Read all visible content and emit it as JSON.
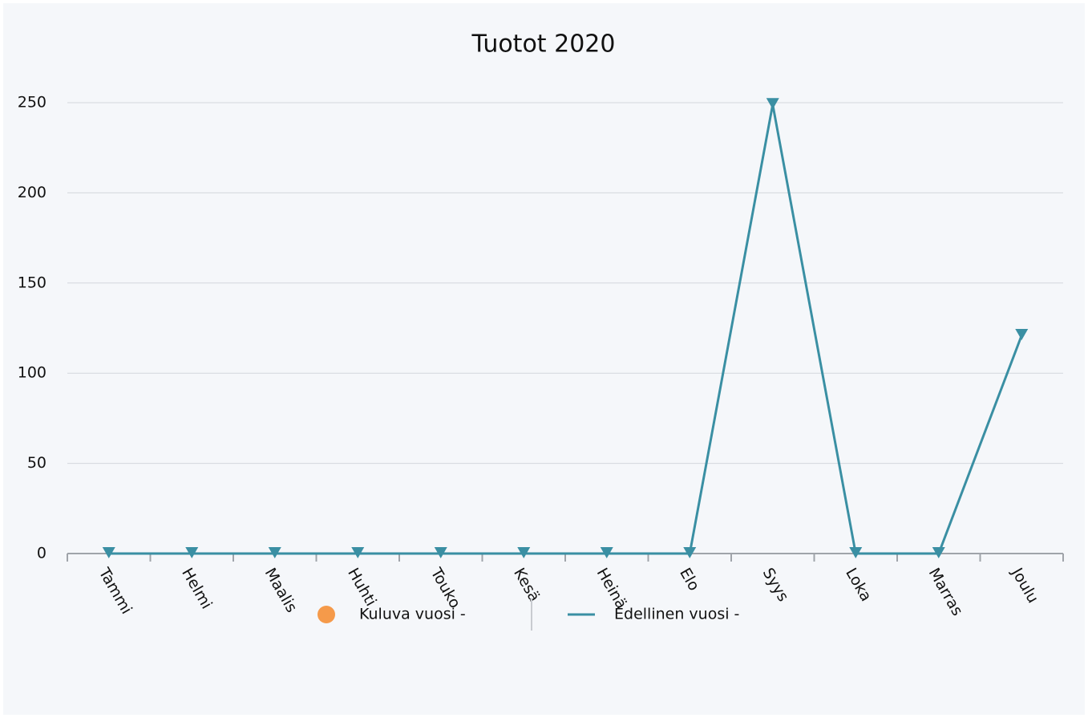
{
  "chart_data": {
    "type": "line",
    "title": "Tuotot 2020",
    "categories": [
      "Tammi",
      "Helmi",
      "Maalis",
      "Huhti",
      "Touko",
      "Kesä",
      "Heinä",
      "Elo",
      "Syys",
      "Loka",
      "Marras",
      "Joulu"
    ],
    "series": [
      {
        "name": "Kuluva vuosi -",
        "color": "#f59a4a",
        "values": [
          null,
          null,
          null,
          null,
          null,
          null,
          null,
          null,
          null,
          null,
          null,
          null
        ]
      },
      {
        "name": "Edellinen vuosi -",
        "color": "#3a8fa3",
        "values": [
          0,
          0,
          0,
          0,
          0,
          0,
          0,
          0,
          249,
          0,
          0,
          121
        ]
      }
    ],
    "ylim": [
      0,
      250
    ],
    "yticks": [
      0,
      50,
      100,
      150,
      200,
      250
    ],
    "grid": true,
    "legend": "bottom"
  }
}
